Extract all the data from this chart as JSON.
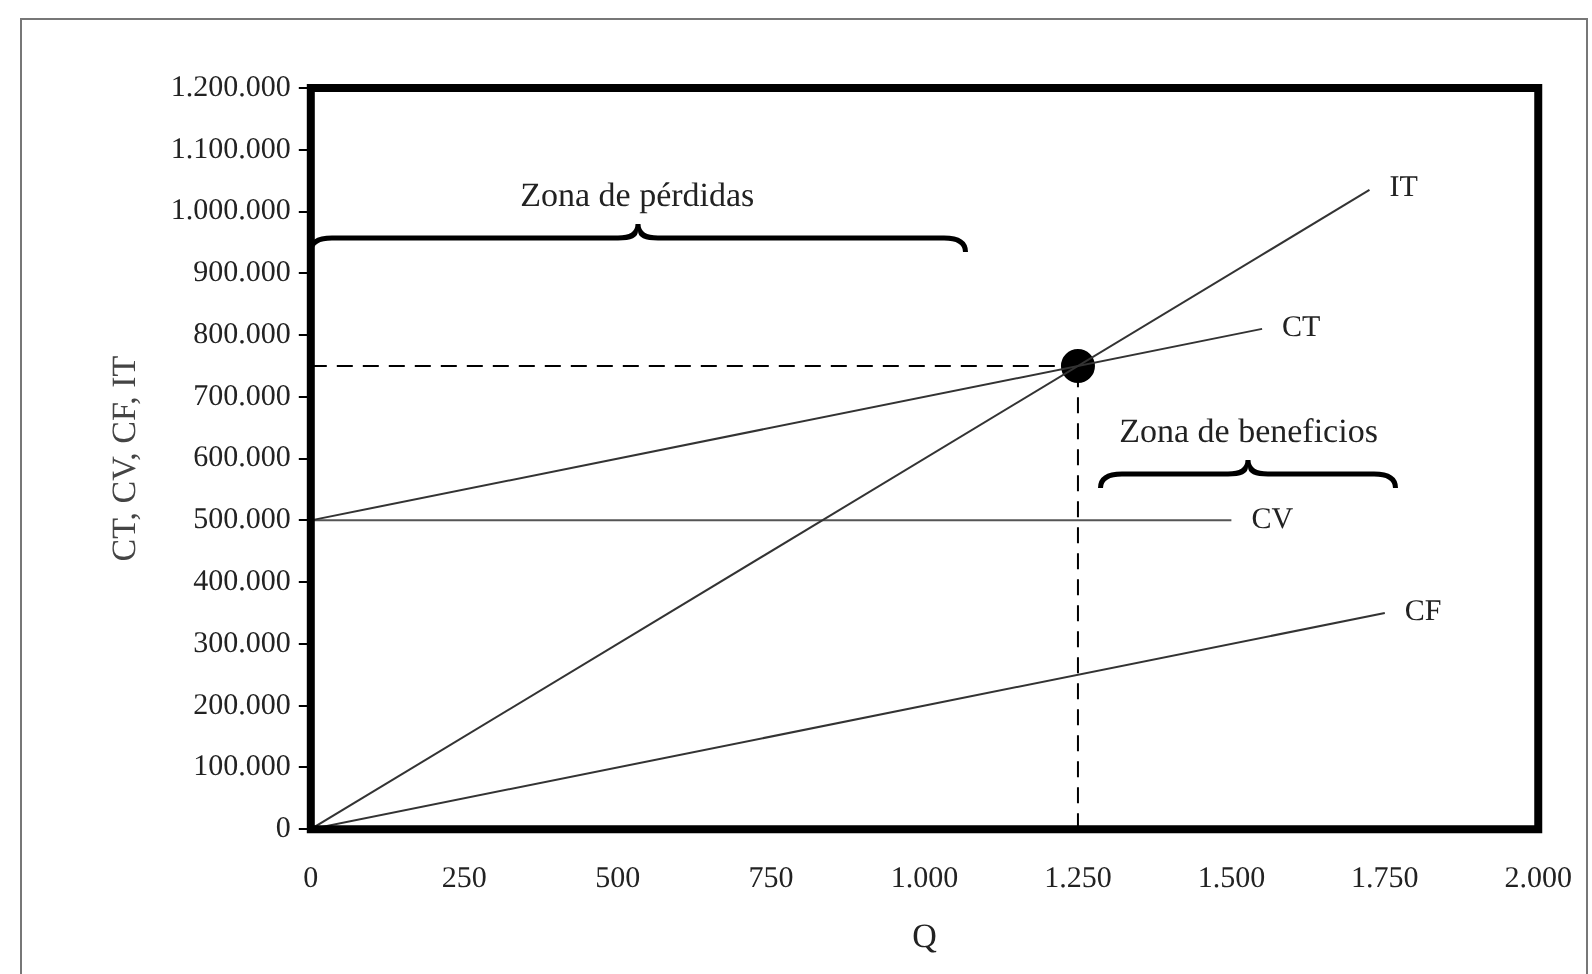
{
  "chart_data": {
    "type": "line",
    "xlabel": "Q",
    "ylabel": "CT, CV, CF, IT",
    "xlim": [
      0,
      2000
    ],
    "xticks": [
      0,
      250,
      500,
      750,
      {
        "value": 1000,
        "label": "1.000"
      },
      {
        "value": 1250,
        "label": "1.250"
      },
      {
        "value": 1500,
        "label": "1.500"
      },
      {
        "value": 1750,
        "label": "1.750"
      },
      {
        "value": 2000,
        "label": "2.000"
      }
    ],
    "ylim": [
      0,
      1200000
    ],
    "yticks": [
      0,
      {
        "value": 100000,
        "label": "100.000"
      },
      {
        "value": 200000,
        "label": "200.000"
      },
      {
        "value": 300000,
        "label": "300.000"
      },
      {
        "value": 400000,
        "label": "400.000"
      },
      {
        "value": 500000,
        "label": "500.000"
      },
      {
        "value": 600000,
        "label": "600.000"
      },
      {
        "value": 700000,
        "label": "700.000"
      },
      {
        "value": 800000,
        "label": "800.000"
      },
      {
        "value": 900000,
        "label": "900.000"
      },
      {
        "value": 1000000,
        "label": "1.000.000"
      },
      {
        "value": 1100000,
        "label": "1.100.000"
      },
      {
        "value": 1200000,
        "label": "1.200.000"
      }
    ],
    "grid": false,
    "legend": false,
    "marker": "none",
    "line_style": "solid",
    "series": [
      {
        "name": "IT",
        "color": "#333333",
        "x": [
          0,
          1725
        ],
        "values": [
          0,
          1035000
        ]
      },
      {
        "name": "CT",
        "color": "#333333",
        "x": [
          0,
          1550
        ],
        "values": [
          500000,
          810000
        ]
      },
      {
        "name": "CV",
        "color": "#555555",
        "x": [
          0,
          1500
        ],
        "values": [
          500000,
          500000
        ]
      },
      {
        "name": "CF",
        "color": "#333333",
        "x": [
          0,
          1750
        ],
        "values": [
          0,
          350000
        ]
      },
      {
        "color": "#000000",
        "x": [
          0,
          1250
        ],
        "values": [
          750000,
          750000
        ],
        "line_style": "dashed"
      },
      {
        "color": "#000000",
        "x": [
          1250,
          1250
        ],
        "values": [
          0,
          750000
        ],
        "line_style": "dashed"
      },
      {
        "type": "scatter",
        "color": "#000000",
        "x": [
          1250
        ],
        "values": [
          750000
        ],
        "marker": "circle"
      }
    ],
    "annotations": [
      "Zona de pérdidas",
      "Zona de beneficios"
    ]
  }
}
